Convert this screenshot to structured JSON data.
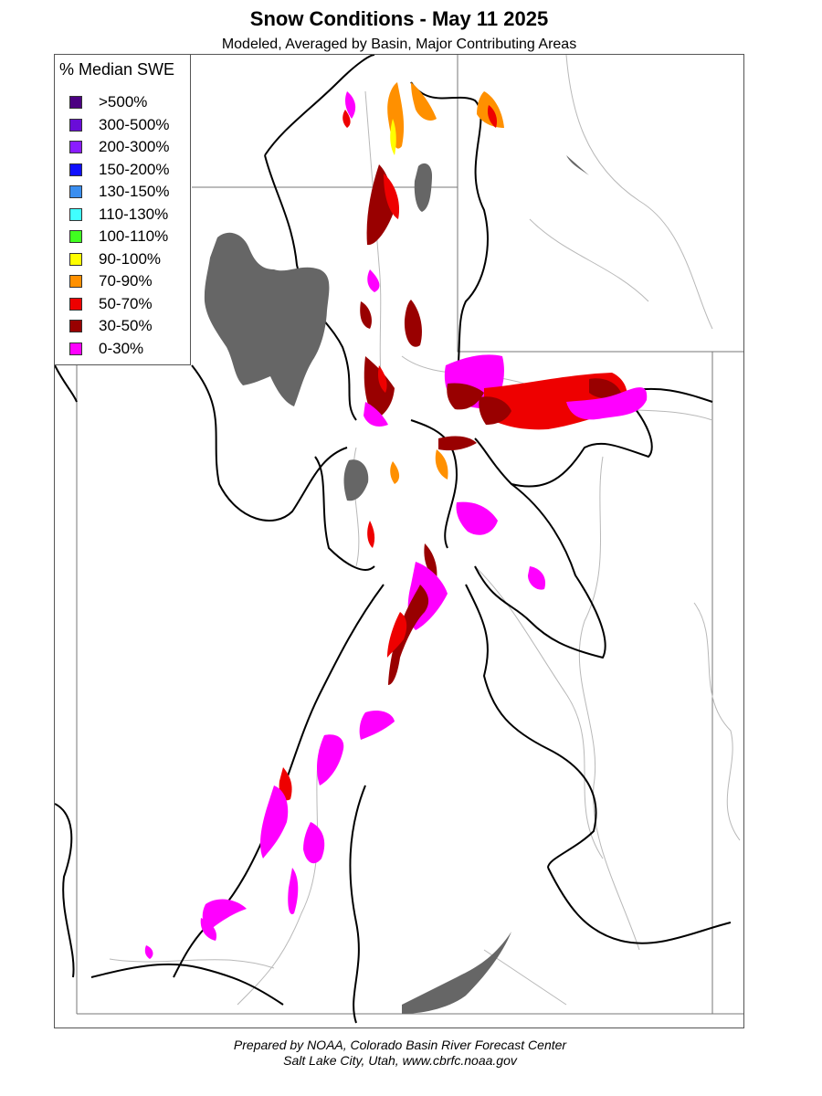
{
  "title": "Snow Conditions - May 11 2025",
  "subtitle": "Modeled, Averaged by Basin, Major Contributing Areas",
  "legend": {
    "title": "% Median SWE",
    "items": [
      {
        "label": ">500%",
        "color": "#4b0082"
      },
      {
        "label": "300-500%",
        "color": "#6a0dd8"
      },
      {
        "label": "200-300%",
        "color": "#8a1cff"
      },
      {
        "label": "150-200%",
        "color": "#1010ff"
      },
      {
        "label": "130-150%",
        "color": "#3a8ef0"
      },
      {
        "label": "110-130%",
        "color": "#40ffff"
      },
      {
        "label": "100-110%",
        "color": "#40ff20"
      },
      {
        "label": "90-100%",
        "color": "#ffff00"
      },
      {
        "label": "70-90%",
        "color": "#ff9000"
      },
      {
        "label": "50-70%",
        "color": "#ee0000"
      },
      {
        "label": "30-50%",
        "color": "#990000"
      },
      {
        "label": "0-30%",
        "color": "#ff00ff"
      }
    ]
  },
  "map": {
    "lake_color": "#666666",
    "river_color": "#b0b0b0",
    "state_border_color": "#777777",
    "basin_border_color": "#000000"
  },
  "footer": {
    "line1": "Prepared by NOAA, Colorado Basin River Forecast Center",
    "line2": "Salt Lake City, Utah, www.cbrfc.noaa.gov"
  }
}
